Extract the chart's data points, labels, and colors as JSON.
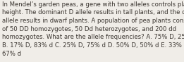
{
  "lines": [
    "In Mendel’s garden peas, a gene with two alleles controls plant",
    "height. The dominant D allele results in tall plants, and the d",
    "allele results in dwarf plants. A population of pea plants consists",
    "of 50 DD homozygotes, 50 Dd heterozygotes, and 200 dd",
    "homozygotes. What are the allele frequencies? A. 75% D, 25% d",
    "B. 17% D, 83% d C. 25% D, 75% d D. 50% D, 50% d E. 33% D,",
    "67% d"
  ],
  "bg_color": "#f0ede8",
  "text_color": "#3a3530",
  "font_size": 6.1,
  "fig_width": 2.61,
  "fig_height": 0.88,
  "dpi": 100
}
